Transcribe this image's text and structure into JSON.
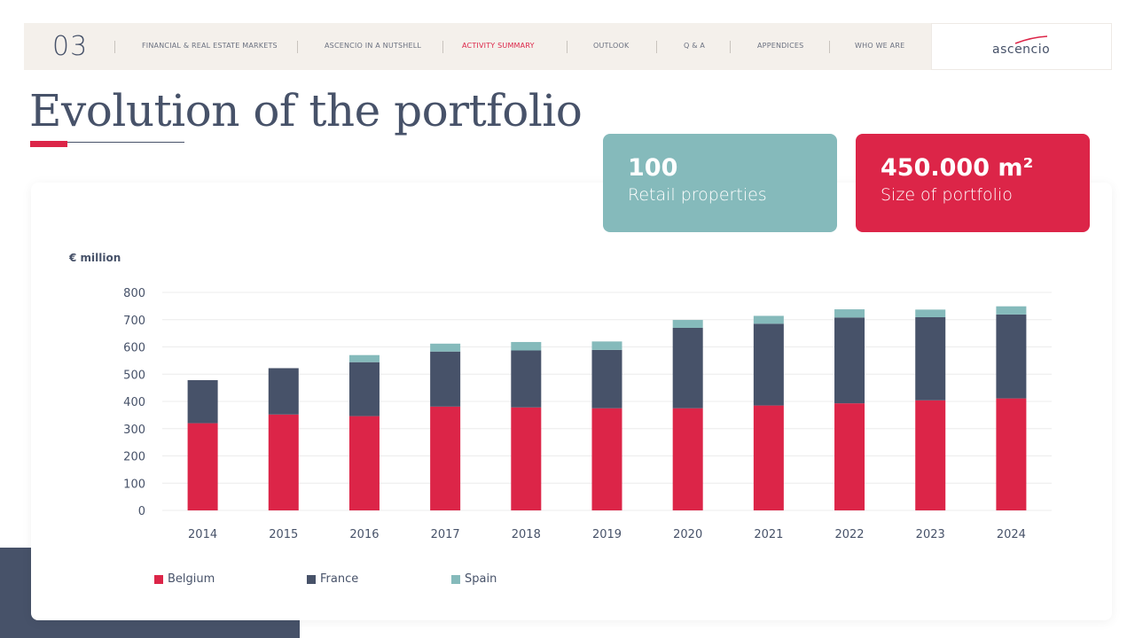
{
  "nav": {
    "number": "03",
    "items": [
      {
        "label": "FINANCIAL & REAL ESTATE MARKETS",
        "active": false
      },
      {
        "label": "ASCENCIO IN A NUTSHELL",
        "active": false
      },
      {
        "label": "ACTIVITY SUMMARY",
        "active": true
      },
      {
        "label": "OUTLOOK",
        "active": false
      },
      {
        "label": "Q & A",
        "active": false
      },
      {
        "label": "APPENDICES",
        "active": false
      },
      {
        "label": "WHO WE ARE",
        "active": false
      }
    ],
    "logo": "ascencio"
  },
  "page_title": "Evolution of the portfolio",
  "kpis": [
    {
      "value": "100",
      "label": "Retail properties",
      "color": "#85babb"
    },
    {
      "value": "450.000 m²",
      "label": "Size of portfolio",
      "color": "#dc2548"
    }
  ],
  "colors": {
    "accent": "#dc2548",
    "navy": "#475269",
    "teal": "#85babb"
  },
  "chart_data": {
    "type": "bar",
    "stacked": true,
    "ylabel": "€ million",
    "ylim": [
      0,
      800
    ],
    "yticks": [
      0,
      100,
      200,
      300,
      400,
      500,
      600,
      700,
      800
    ],
    "grid": true,
    "legend_position": "bottom-left",
    "categories": [
      "2014",
      "2015",
      "2016",
      "2017",
      "2018",
      "2019",
      "2020",
      "2021",
      "2022",
      "2023",
      "2024"
    ],
    "series": [
      {
        "name": "Belgium",
        "color": "#dc2548",
        "values": [
          320,
          352,
          346,
          381,
          378,
          375,
          375,
          385,
          393,
          404,
          411
        ]
      },
      {
        "name": "France",
        "color": "#475269",
        "values": [
          158,
          170,
          198,
          202,
          209,
          214,
          295,
          300,
          315,
          305,
          308
        ]
      },
      {
        "name": "Spain",
        "color": "#85babb",
        "values": [
          0,
          0,
          26,
          29,
          31,
          31,
          29,
          29,
          30,
          28,
          30
        ]
      }
    ]
  }
}
